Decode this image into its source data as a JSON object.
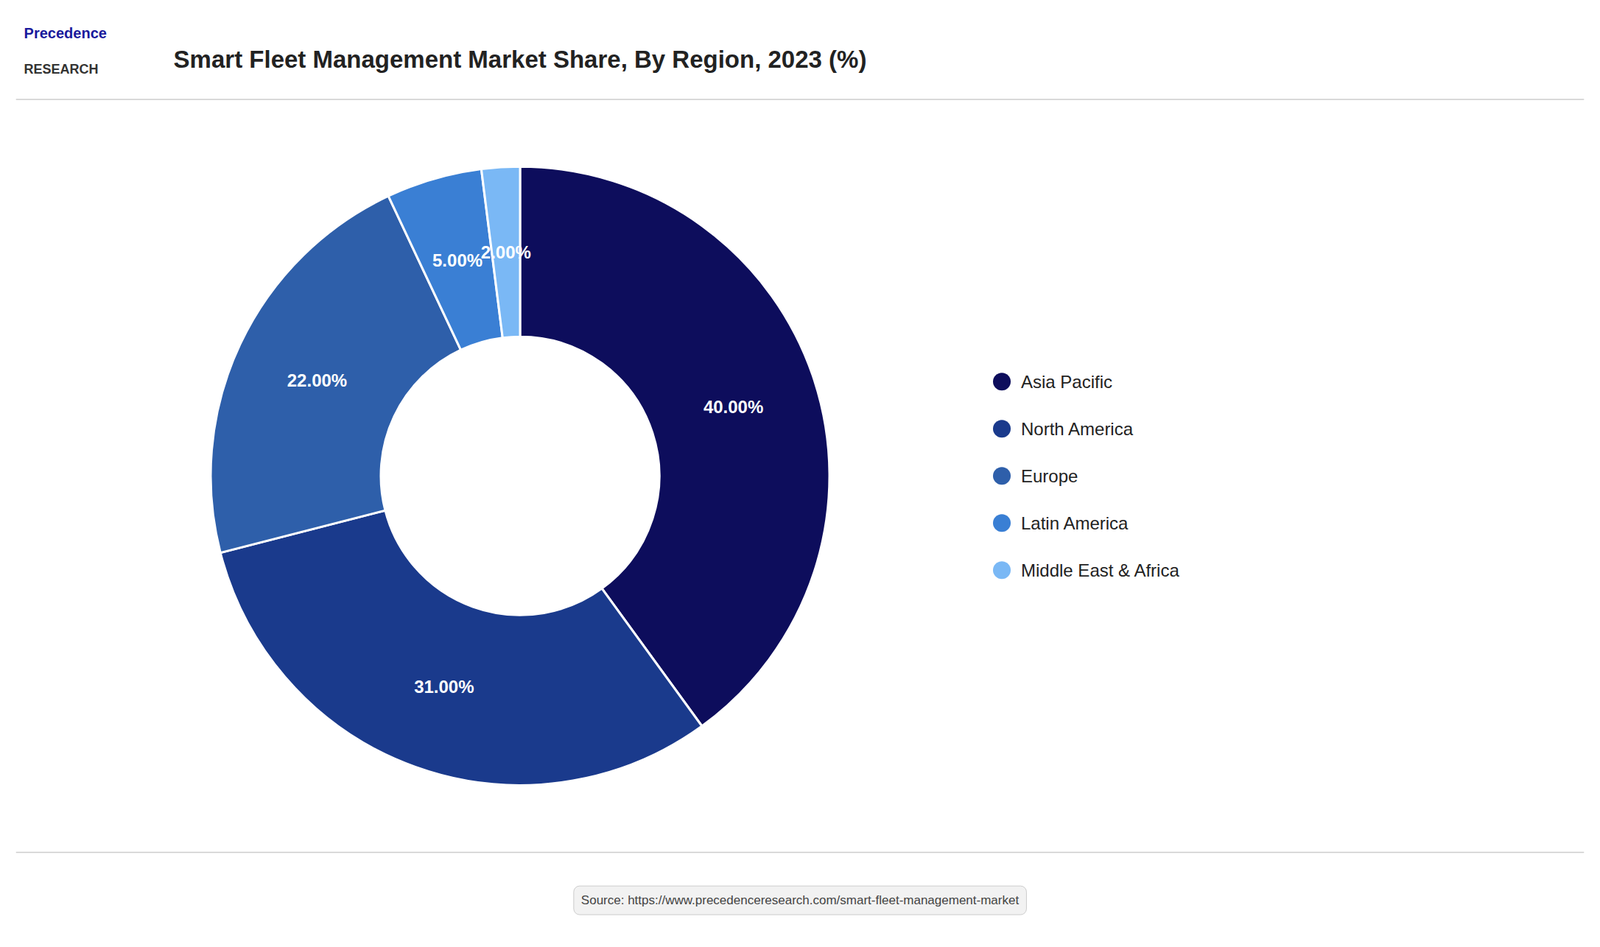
{
  "chart_data": {
    "type": "donut",
    "title": "Smart Fleet Management Market Share, By Region, 2023 (%)",
    "categories": [
      "Asia Pacific",
      "North America",
      "Europe",
      "Latin America",
      "Middle East & Africa"
    ],
    "values": [
      40,
      31,
      22,
      5,
      2
    ],
    "value_labels": [
      "40.00%",
      "31.00%",
      "22.00%",
      "5.00%",
      "2.00%"
    ],
    "colors": [
      "#0d0d5c",
      "#1a3a8c",
      "#2e5faa",
      "#3a7fd4",
      "#7ab8f5"
    ],
    "data_labels": true,
    "legend": "right",
    "annotations": [
      "Precedence",
      "RESEARCH",
      "Source: https://www.precedenceresearch.com/smart-fleet-management-market"
    ]
  }
}
